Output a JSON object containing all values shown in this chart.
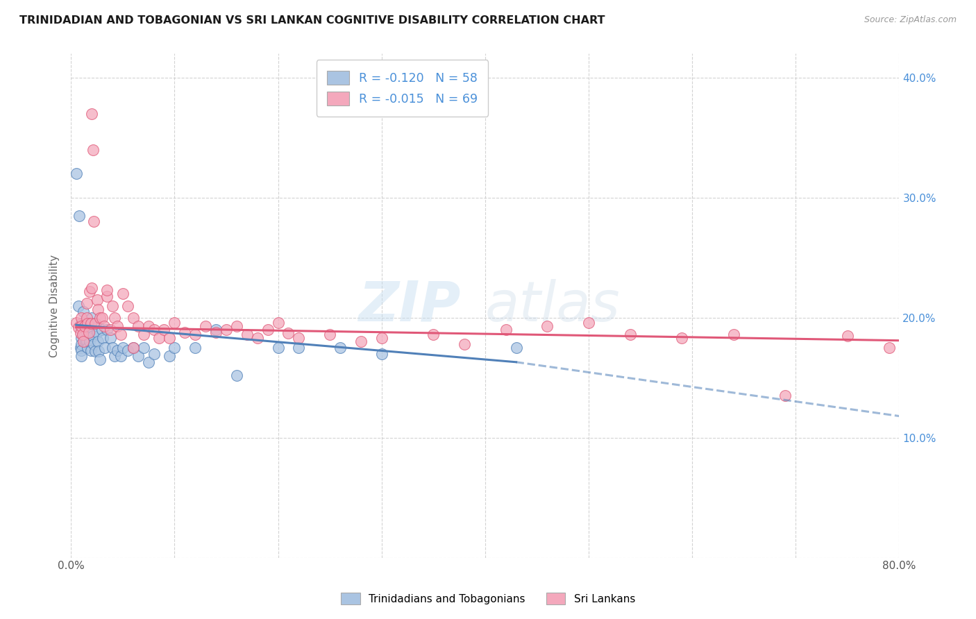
{
  "title": "TRINIDADIAN AND TOBAGONIAN VS SRI LANKAN COGNITIVE DISABILITY CORRELATION CHART",
  "source": "Source: ZipAtlas.com",
  "ylabel": "Cognitive Disability",
  "watermark": "ZIPatlas",
  "xlim": [
    0.0,
    0.8
  ],
  "ylim": [
    0.0,
    0.42
  ],
  "legend_label1": "Trinidadians and Tobagonians",
  "legend_label2": "Sri Lankans",
  "R1": -0.12,
  "N1": 58,
  "R2": -0.015,
  "N2": 69,
  "color1": "#aac4e2",
  "color2": "#f4a8bc",
  "line_color1": "#5080b8",
  "line_color2": "#e05878",
  "background_color": "#ffffff",
  "grid_color": "#c8c8c8",
  "scatter1_x": [
    0.005,
    0.007,
    0.008,
    0.009,
    0.01,
    0.01,
    0.01,
    0.01,
    0.01,
    0.01,
    0.012,
    0.013,
    0.013,
    0.014,
    0.015,
    0.015,
    0.015,
    0.016,
    0.017,
    0.018,
    0.018,
    0.019,
    0.02,
    0.02,
    0.021,
    0.022,
    0.023,
    0.024,
    0.025,
    0.026,
    0.027,
    0.028,
    0.03,
    0.031,
    0.033,
    0.035,
    0.038,
    0.04,
    0.042,
    0.045,
    0.048,
    0.05,
    0.055,
    0.06,
    0.065,
    0.07,
    0.075,
    0.08,
    0.095,
    0.1,
    0.12,
    0.14,
    0.16,
    0.2,
    0.22,
    0.26,
    0.3,
    0.43
  ],
  "scatter1_y": [
    0.32,
    0.21,
    0.285,
    0.175,
    0.195,
    0.19,
    0.183,
    0.178,
    0.173,
    0.168,
    0.205,
    0.193,
    0.186,
    0.18,
    0.195,
    0.188,
    0.18,
    0.175,
    0.195,
    0.188,
    0.18,
    0.173,
    0.2,
    0.192,
    0.185,
    0.178,
    0.172,
    0.195,
    0.188,
    0.18,
    0.172,
    0.165,
    0.19,
    0.183,
    0.175,
    0.19,
    0.183,
    0.175,
    0.168,
    0.173,
    0.168,
    0.175,
    0.173,
    0.175,
    0.168,
    0.175,
    0.163,
    0.17,
    0.168,
    0.175,
    0.175,
    0.19,
    0.152,
    0.175,
    0.175,
    0.175,
    0.17,
    0.175
  ],
  "scatter2_x": [
    0.005,
    0.007,
    0.009,
    0.01,
    0.01,
    0.011,
    0.012,
    0.013,
    0.015,
    0.015,
    0.016,
    0.017,
    0.018,
    0.019,
    0.02,
    0.021,
    0.022,
    0.023,
    0.025,
    0.026,
    0.028,
    0.03,
    0.032,
    0.035,
    0.038,
    0.04,
    0.042,
    0.045,
    0.048,
    0.05,
    0.055,
    0.06,
    0.065,
    0.07,
    0.075,
    0.08,
    0.085,
    0.09,
    0.095,
    0.1,
    0.11,
    0.12,
    0.13,
    0.14,
    0.15,
    0.16,
    0.17,
    0.18,
    0.19,
    0.2,
    0.21,
    0.22,
    0.25,
    0.28,
    0.3,
    0.35,
    0.38,
    0.42,
    0.46,
    0.5,
    0.54,
    0.59,
    0.64,
    0.69,
    0.75,
    0.79,
    0.02,
    0.035,
    0.06
  ],
  "scatter2_y": [
    0.196,
    0.192,
    0.187,
    0.2,
    0.193,
    0.186,
    0.18,
    0.193,
    0.212,
    0.2,
    0.195,
    0.188,
    0.222,
    0.195,
    0.37,
    0.34,
    0.28,
    0.195,
    0.215,
    0.207,
    0.2,
    0.2,
    0.193,
    0.218,
    0.19,
    0.21,
    0.2,
    0.193,
    0.186,
    0.22,
    0.21,
    0.2,
    0.193,
    0.186,
    0.193,
    0.19,
    0.183,
    0.19,
    0.183,
    0.196,
    0.188,
    0.186,
    0.193,
    0.188,
    0.19,
    0.193,
    0.186,
    0.183,
    0.19,
    0.196,
    0.187,
    0.183,
    0.186,
    0.18,
    0.183,
    0.186,
    0.178,
    0.19,
    0.193,
    0.196,
    0.186,
    0.183,
    0.186,
    0.135,
    0.185,
    0.175,
    0.225,
    0.223,
    0.175
  ],
  "line1_x0": 0.005,
  "line1_x_solid_end": 0.43,
  "line1_x1": 0.8,
  "line1_y0": 0.194,
  "line1_y_solid_end": 0.163,
  "line1_y1": 0.118,
  "line2_x0": 0.005,
  "line2_x1": 0.8,
  "line2_y0": 0.192,
  "line2_y1": 0.181
}
